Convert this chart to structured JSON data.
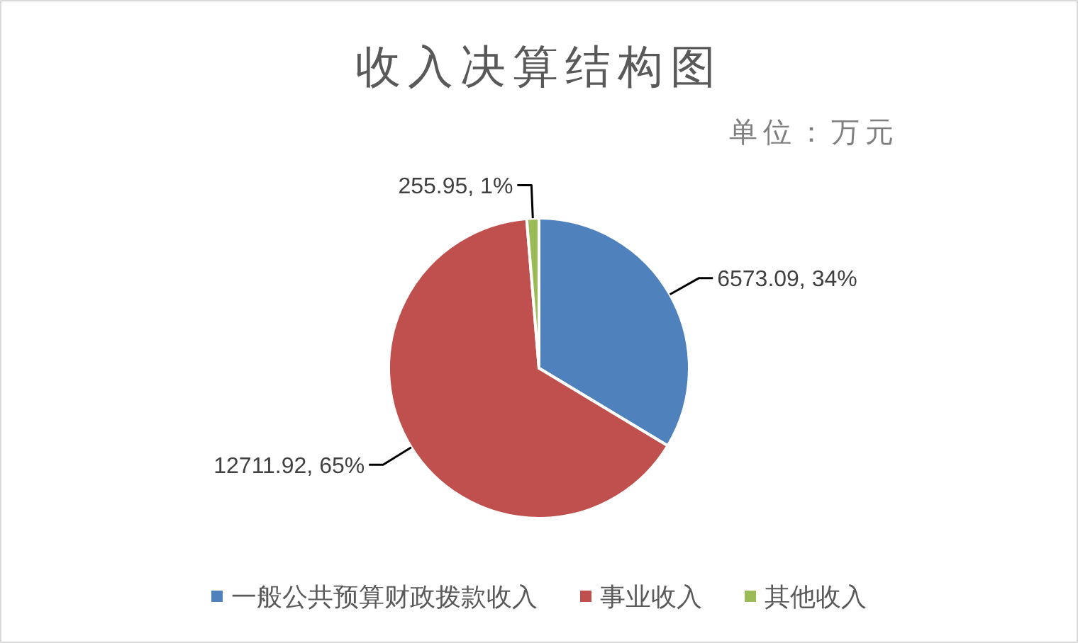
{
  "chart_data": {
    "type": "pie",
    "title": "收入决算结构图",
    "subtitle": "单位：万元",
    "categories": [
      "一般公共预算财政拨款收入",
      "事业收入",
      "其他收入"
    ],
    "values": [
      6573.09,
      12711.92,
      255.95
    ],
    "colors": [
      "#4f81bd",
      "#c0504d",
      "#9bbb59"
    ],
    "value_labels": [
      "6573.09, 34%",
      "12711.92, 65%",
      "255.95, 1%"
    ],
    "legend": "bottom"
  }
}
